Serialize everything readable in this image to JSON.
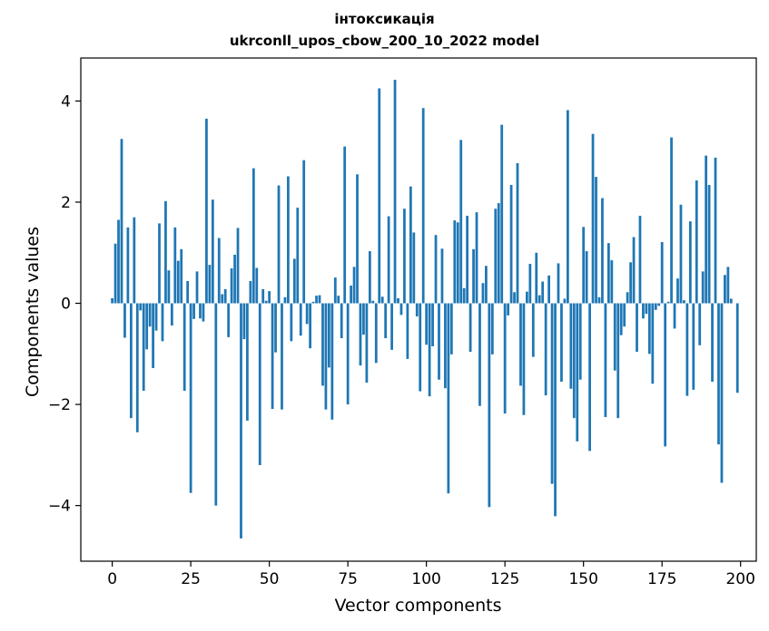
{
  "chart_data": {
    "type": "bar",
    "title": "інтоксикація",
    "subtitle": "ukrconll_upos_cbow_200_10_2022 model",
    "xlabel": "Vector components",
    "ylabel": "Components values",
    "xlim": [
      -10,
      205
    ],
    "ylim": [
      -5.1,
      4.85
    ],
    "xticks": [
      0,
      25,
      50,
      75,
      100,
      125,
      150,
      175,
      200
    ],
    "yticks": [
      -4,
      -2,
      0,
      2,
      4
    ],
    "xtick_labels": [
      "0",
      "25",
      "50",
      "75",
      "100",
      "125",
      "150",
      "175",
      "200"
    ],
    "ytick_labels": [
      "−4",
      "−2",
      "0",
      "2",
      "4"
    ],
    "grid": false,
    "bar_color": "#1f77b4",
    "x": [
      0,
      1,
      2,
      3,
      4,
      5,
      6,
      7,
      8,
      9,
      10,
      11,
      12,
      13,
      14,
      15,
      16,
      17,
      18,
      19,
      20,
      21,
      22,
      23,
      24,
      25,
      26,
      27,
      28,
      29,
      30,
      31,
      32,
      33,
      34,
      35,
      36,
      37,
      38,
      39,
      40,
      41,
      42,
      43,
      44,
      45,
      46,
      47,
      48,
      49,
      50,
      51,
      52,
      53,
      54,
      55,
      56,
      57,
      58,
      59,
      60,
      61,
      62,
      63,
      64,
      65,
      66,
      67,
      68,
      69,
      70,
      71,
      72,
      73,
      74,
      75,
      76,
      77,
      78,
      79,
      80,
      81,
      82,
      83,
      84,
      85,
      86,
      87,
      88,
      89,
      90,
      91,
      92,
      93,
      94,
      95,
      96,
      97,
      98,
      99,
      100,
      101,
      102,
      103,
      104,
      105,
      106,
      107,
      108,
      109,
      110,
      111,
      112,
      113,
      114,
      115,
      116,
      117,
      118,
      119,
      120,
      121,
      122,
      123,
      124,
      125,
      126,
      127,
      128,
      129,
      130,
      131,
      132,
      133,
      134,
      135,
      136,
      137,
      138,
      139,
      140,
      141,
      142,
      143,
      144,
      145,
      146,
      147,
      148,
      149,
      150,
      151,
      152,
      153,
      154,
      155,
      156,
      157,
      158,
      159,
      160,
      161,
      162,
      163,
      164,
      165,
      166,
      167,
      168,
      169,
      170,
      171,
      172,
      173,
      174,
      175,
      176,
      177,
      178,
      179,
      180,
      181,
      182,
      183,
      184,
      185,
      186,
      187,
      188,
      189,
      190,
      191,
      192,
      193,
      194,
      195,
      196,
      197,
      198,
      199
    ],
    "values": [
      0.1,
      1.18,
      1.65,
      3.25,
      -0.68,
      1.5,
      -2.27,
      1.7,
      -2.55,
      -0.14,
      -1.73,
      -0.91,
      -0.46,
      -1.28,
      -0.54,
      1.58,
      -0.75,
      2.02,
      0.65,
      -0.44,
      1.5,
      0.84,
      1.07,
      -1.73,
      0.44,
      -3.75,
      -0.31,
      0.63,
      -0.3,
      -0.36,
      3.65,
      0.76,
      2.05,
      -4.0,
      1.29,
      0.18,
      0.28,
      -0.67,
      0.69,
      0.96,
      1.49,
      -4.65,
      -0.71,
      -2.32,
      0.44,
      2.67,
      0.7,
      -3.2,
      0.28,
      0.05,
      0.24,
      -2.09,
      -0.97,
      2.33,
      -2.1,
      0.12,
      2.51,
      -0.75,
      0.88,
      1.89,
      -0.64,
      2.83,
      -0.41,
      -0.89,
      0.03,
      0.15,
      0.16,
      -1.63,
      -2.1,
      -1.27,
      -2.3,
      0.51,
      0.15,
      -0.69,
      3.1,
      -2.0,
      0.35,
      0.72,
      2.55,
      -1.23,
      -0.62,
      -1.57,
      1.03,
      0.05,
      -1.18,
      4.25,
      0.13,
      -0.69,
      1.72,
      -0.92,
      4.42,
      0.1,
      -0.23,
      1.87,
      -1.1,
      2.31,
      1.4,
      -0.26,
      -1.74,
      3.86,
      -0.82,
      -1.84,
      -0.85,
      1.35,
      -1.51,
      1.08,
      -1.68,
      -3.76,
      -1.01,
      1.64,
      1.6,
      3.23,
      0.3,
      1.73,
      -0.96,
      1.07,
      1.8,
      -2.03,
      0.4,
      0.74,
      -4.03,
      -1.01,
      1.87,
      1.98,
      3.53,
      -2.18,
      -0.24,
      2.34,
      0.22,
      2.77,
      -1.63,
      -2.21,
      0.23,
      0.78,
      -1.06,
      1.0,
      0.16,
      0.43,
      -1.82,
      0.55,
      -3.57,
      -4.21,
      0.79,
      -1.55,
      0.09,
      3.82,
      -1.69,
      -2.27,
      -2.73,
      -1.51,
      1.51,
      1.03,
      -2.92,
      3.35,
      2.5,
      0.12,
      2.08,
      -2.25,
      1.19,
      0.85,
      -1.33,
      -2.27,
      -0.63,
      -0.46,
      0.22,
      0.81,
      1.31,
      -0.96,
      1.73,
      -0.3,
      -0.21,
      -1.0,
      -1.59,
      -0.13,
      -0.05,
      1.21,
      -2.83,
      0.03,
      3.28,
      -0.5,
      0.49,
      1.95,
      0.06,
      -1.83,
      1.62,
      -1.71,
      2.43,
      -0.83,
      0.63,
      2.92,
      2.34,
      -1.55,
      2.88,
      -2.79,
      -3.55,
      0.56,
      0.72,
      0.09,
      0.0,
      -1.77
    ]
  }
}
